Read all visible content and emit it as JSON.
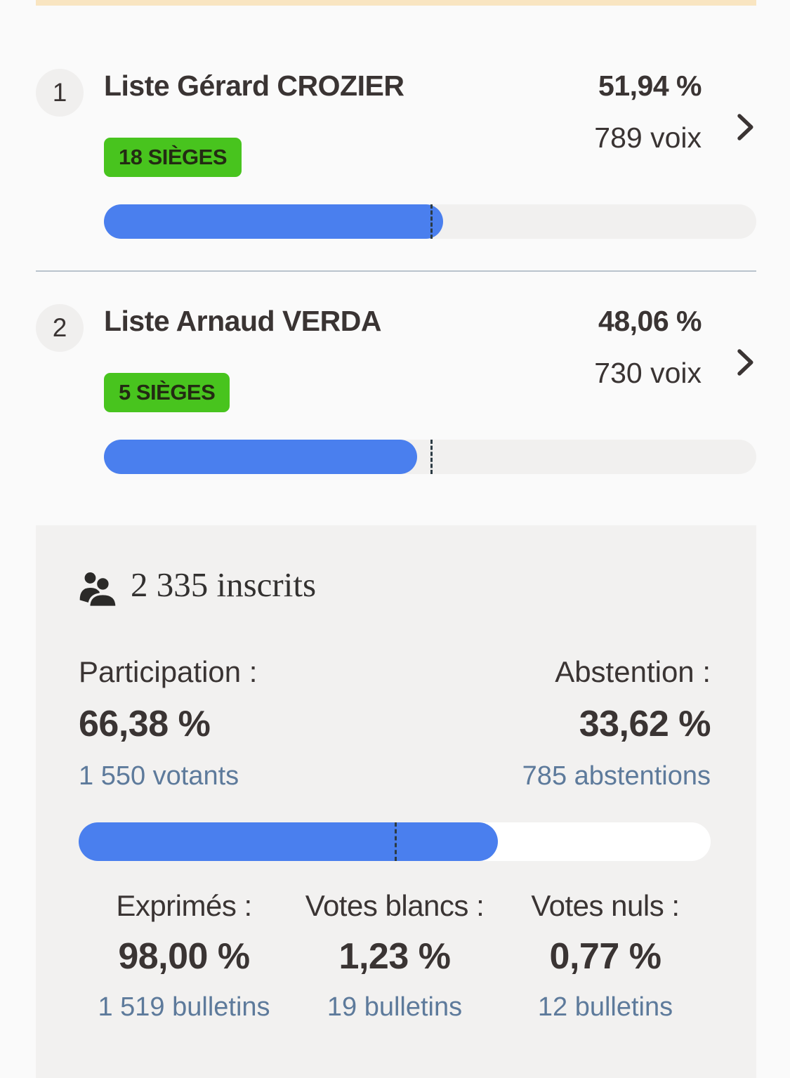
{
  "colors": {
    "accent_blue": "#4a7fee",
    "badge_green": "#48c41e",
    "count_blue_gray": "#5d7a9b",
    "top_strip_yellow": "#f9e5c1",
    "panel_gray": "#f2f1f0"
  },
  "results": [
    {
      "rank": "1",
      "name": "Liste Gérard CROZIER",
      "percent": "51,94 %",
      "votes": "789 voix",
      "seats": "18 SIÈGES",
      "bar_percent": 51.94
    },
    {
      "rank": "2",
      "name": "Liste Arnaud VERDA",
      "percent": "48,06 %",
      "votes": "730 voix",
      "seats": "5 SIÈGES",
      "bar_percent": 48.06
    }
  ],
  "summary": {
    "inscrits": "2 335 inscrits",
    "participation": {
      "label": "Participation :",
      "percent": "66,38 %",
      "count": "1 550 votants",
      "bar_percent": 66.38
    },
    "abstention": {
      "label": "Abstention :",
      "percent": "33,62 %",
      "count": "785 abstentions"
    },
    "stats": [
      {
        "label": "Exprimés :",
        "percent": "98,00 %",
        "count": "1 519 bulletins"
      },
      {
        "label": "Votes blancs :",
        "percent": "1,23 %",
        "count": "19 bulletins"
      },
      {
        "label": "Votes nuls :",
        "percent": "0,77 %",
        "count": "12 bulletins"
      }
    ]
  }
}
